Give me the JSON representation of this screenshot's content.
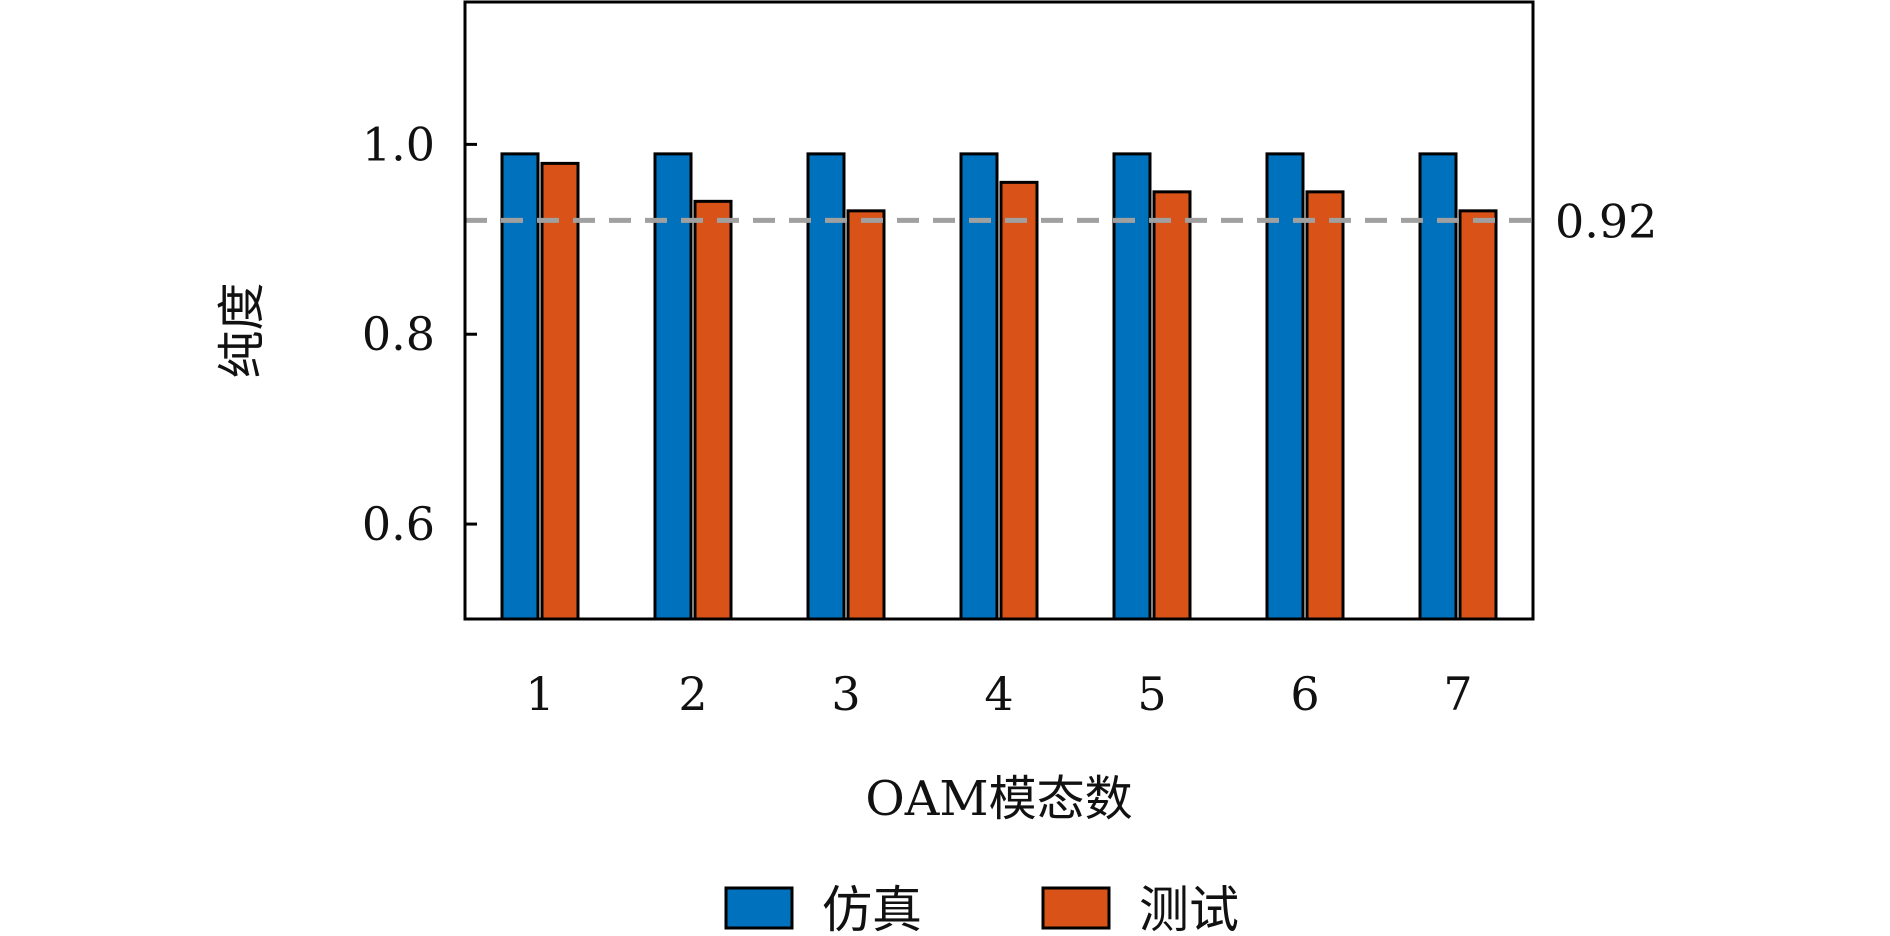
{
  "chart_data": {
    "type": "bar",
    "categories": [
      "1",
      "2",
      "3",
      "4",
      "5",
      "6",
      "7"
    ],
    "series": [
      {
        "name": "仿真",
        "color": "#0072BD",
        "values": [
          0.99,
          0.99,
          0.99,
          0.99,
          0.99,
          0.99,
          0.99
        ]
      },
      {
        "name": "测试",
        "color": "#D95319",
        "values": [
          0.98,
          0.94,
          0.93,
          0.96,
          0.95,
          0.95,
          0.93
        ]
      }
    ],
    "xlabel": "OAM模态数",
    "ylabel": "纯度",
    "ylim": [
      0.5,
      1.15
    ],
    "yticks": [
      0.6,
      0.8,
      1.0
    ],
    "ytick_labels": [
      "0.6",
      "0.8",
      "1.0"
    ],
    "reference_line": {
      "value": 0.92,
      "label": "0.92",
      "color": "#A0A0A0",
      "style": "dashed"
    },
    "grid": false,
    "legend_position": "bottom"
  }
}
